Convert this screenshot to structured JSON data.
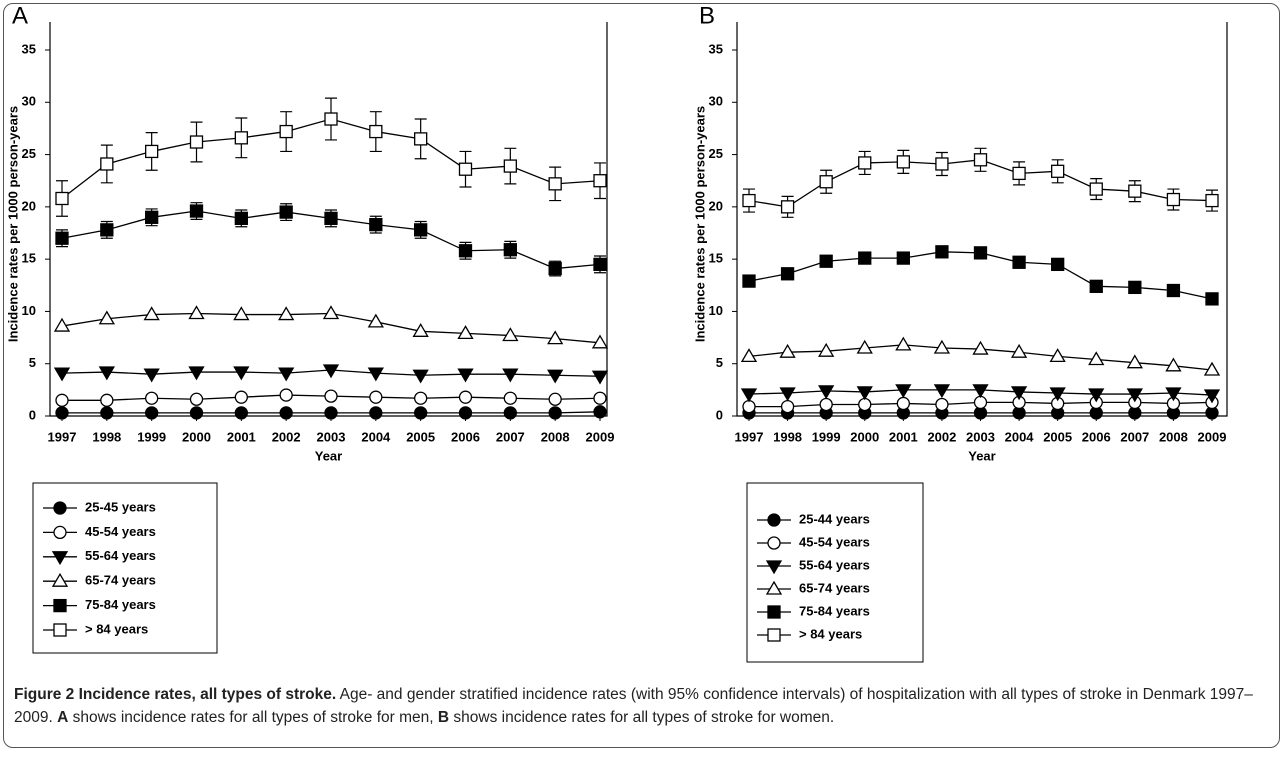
{
  "chart_data": [
    {
      "type": "line",
      "panel": "A",
      "categories": [
        "1997",
        "1998",
        "1999",
        "2000",
        "2001",
        "2002",
        "2003",
        "2004",
        "2005",
        "2006",
        "2007",
        "2008",
        "2009"
      ],
      "xlabel": "Year",
      "ylabel": "Incidence rates per 1000 person-years",
      "ylim": [
        0,
        35
      ],
      "yticks": [
        0,
        5,
        10,
        15,
        20,
        25,
        30,
        35
      ],
      "series": [
        {
          "name": "25-45 years",
          "color": "#000000",
          "marker": "circle",
          "filled": true,
          "values": [
            0.3,
            0.3,
            0.3,
            0.3,
            0.3,
            0.3,
            0.3,
            0.3,
            0.3,
            0.3,
            0.3,
            0.3,
            0.4
          ]
        },
        {
          "name": "45-54 years",
          "color": "#000000",
          "marker": "circle",
          "filled": false,
          "values": [
            1.5,
            1.5,
            1.7,
            1.6,
            1.8,
            2.0,
            1.9,
            1.8,
            1.7,
            1.8,
            1.7,
            1.6,
            1.7
          ]
        },
        {
          "name": "55-64 years",
          "color": "#000000",
          "marker": "triangle-down",
          "filled": true,
          "values": [
            4.1,
            4.2,
            4.0,
            4.2,
            4.2,
            4.1,
            4.4,
            4.1,
            3.9,
            4.0,
            4.0,
            3.9,
            3.8
          ]
        },
        {
          "name": "65-74 years",
          "color": "#000000",
          "marker": "triangle-up",
          "filled": false,
          "values": [
            8.6,
            9.3,
            9.7,
            9.8,
            9.7,
            9.7,
            9.8,
            9.0,
            8.1,
            7.9,
            7.7,
            7.4,
            7.0
          ]
        },
        {
          "name": "75-84 years",
          "color": "#000000",
          "marker": "square",
          "filled": true,
          "values": [
            17.0,
            17.8,
            19.0,
            19.6,
            18.9,
            19.5,
            18.9,
            18.3,
            17.8,
            15.8,
            15.9,
            14.1,
            14.5
          ],
          "errors": [
            0.8,
            0.8,
            0.8,
            0.8,
            0.8,
            0.8,
            0.8,
            0.8,
            0.8,
            0.8,
            0.8,
            0.7,
            0.8
          ]
        },
        {
          "name": "> 84 years",
          "color": "#000000",
          "marker": "square",
          "filled": false,
          "values": [
            20.8,
            24.1,
            25.3,
            26.2,
            26.6,
            27.2,
            28.4,
            27.2,
            26.5,
            23.6,
            23.9,
            22.2,
            22.5
          ],
          "errors": [
            1.7,
            1.8,
            1.8,
            1.9,
            1.9,
            1.9,
            2.0,
            1.9,
            1.9,
            1.7,
            1.7,
            1.6,
            1.7
          ]
        }
      ]
    },
    {
      "type": "line",
      "panel": "B",
      "categories": [
        "1997",
        "1998",
        "1999",
        "2000",
        "2001",
        "2002",
        "2003",
        "2004",
        "2005",
        "2006",
        "2007",
        "2008",
        "2009"
      ],
      "xlabel": "Year",
      "ylabel": "Incidence rates per 1000 person-years",
      "ylim": [
        0,
        35
      ],
      "yticks": [
        0,
        5,
        10,
        15,
        20,
        25,
        30,
        35
      ],
      "series": [
        {
          "name": "25-44 years",
          "color": "#000000",
          "marker": "circle",
          "filled": true,
          "values": [
            0.3,
            0.3,
            0.3,
            0.3,
            0.3,
            0.3,
            0.3,
            0.3,
            0.3,
            0.3,
            0.3,
            0.3,
            0.3
          ]
        },
        {
          "name": "45-54 years",
          "color": "#000000",
          "marker": "circle",
          "filled": false,
          "values": [
            0.9,
            0.9,
            1.1,
            1.1,
            1.2,
            1.1,
            1.3,
            1.3,
            1.2,
            1.3,
            1.3,
            1.2,
            1.3
          ]
        },
        {
          "name": "55-64 years",
          "color": "#000000",
          "marker": "triangle-down",
          "filled": true,
          "values": [
            2.1,
            2.2,
            2.4,
            2.3,
            2.5,
            2.5,
            2.5,
            2.3,
            2.2,
            2.1,
            2.1,
            2.2,
            2.0
          ]
        },
        {
          "name": "65-74 years",
          "color": "#000000",
          "marker": "triangle-up",
          "filled": false,
          "values": [
            5.7,
            6.1,
            6.2,
            6.5,
            6.8,
            6.5,
            6.4,
            6.1,
            5.7,
            5.4,
            5.1,
            4.8,
            4.4
          ]
        },
        {
          "name": "75-84 years",
          "color": "#000000",
          "marker": "square",
          "filled": true,
          "values": [
            12.9,
            13.6,
            14.8,
            15.1,
            15.1,
            15.7,
            15.6,
            14.7,
            14.5,
            12.4,
            12.3,
            12.0,
            11.2
          ],
          "errors": [
            0.5,
            0.5,
            0.5,
            0.5,
            0.5,
            0.5,
            0.5,
            0.5,
            0.5,
            0.5,
            0.5,
            0.5,
            0.5
          ]
        },
        {
          "name": "> 84 years",
          "color": "#000000",
          "marker": "square",
          "filled": false,
          "values": [
            20.6,
            20.0,
            22.4,
            24.2,
            24.3,
            24.1,
            24.5,
            23.2,
            23.4,
            21.7,
            21.5,
            20.7,
            20.6
          ],
          "errors": [
            1.1,
            1.0,
            1.1,
            1.1,
            1.1,
            1.1,
            1.1,
            1.1,
            1.1,
            1.0,
            1.0,
            1.0,
            1.0
          ]
        }
      ]
    }
  ],
  "caption": {
    "title": "Figure 2 Incidence rates, all types of stroke.",
    "segments": [
      " Age- and gender stratified incidence rates (with 95% confidence intervals) of hospitalization with all types of stroke in Denmark 1997–2009. ",
      "A",
      " shows incidence rates for all types of stroke for men, ",
      "B",
      " shows incidence rates for all types of stroke for women."
    ]
  }
}
